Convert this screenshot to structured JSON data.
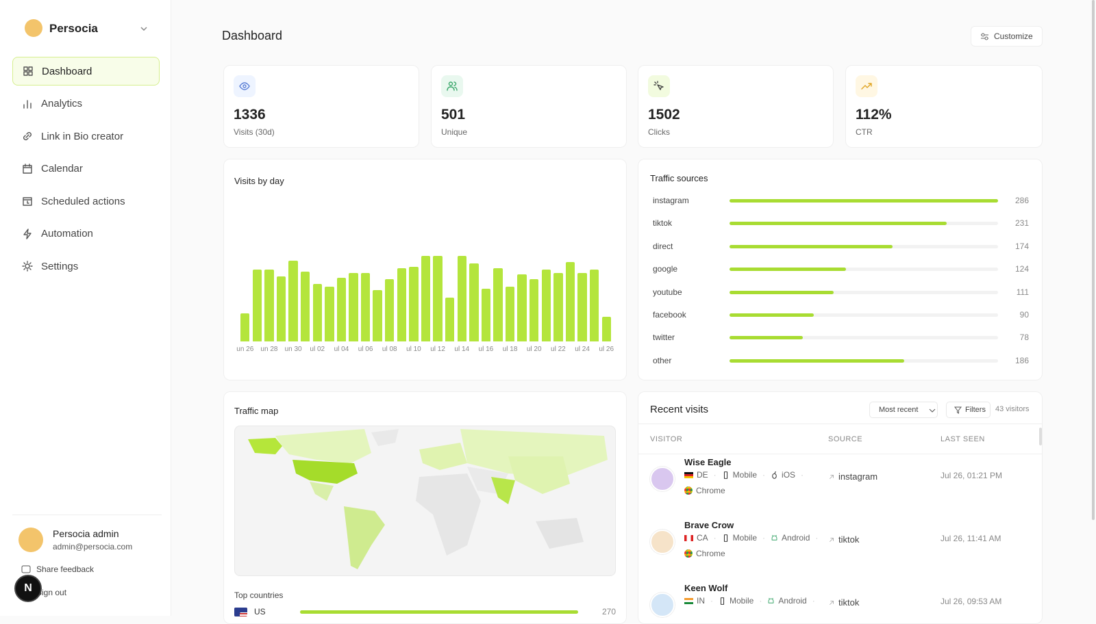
{
  "sidebar": {
    "brand": "Persocia",
    "nav": [
      "Dashboard",
      "Analytics",
      "Link in Bio creator",
      "Calendar",
      "Scheduled actions",
      "Automation",
      "Settings"
    ],
    "active": 0,
    "user": {
      "name": "Persocia admin",
      "email": "admin@persocia.com"
    },
    "links": [
      "Share feedback",
      "Sign out"
    ],
    "badge": "N"
  },
  "header": {
    "title": "Dashboard",
    "button": "Customize"
  },
  "stats": [
    {
      "value": 1336,
      "label": "Visits (30d)"
    },
    {
      "value": 501,
      "label": "Unique"
    },
    {
      "value": 1502,
      "label": "Clicks"
    },
    {
      "value": "112%",
      "label": "CTR"
    }
  ],
  "visits_by_day": {
    "title": "Visits by day",
    "color": "#b4e53c",
    "categories": [
      "un 26",
      null,
      "un 28",
      null,
      "un 30",
      null,
      "ul 02",
      null,
      "ul 04",
      null,
      "ul 06",
      null,
      "ul 08",
      null,
      "ul 10",
      null,
      "ul 12",
      null,
      "ul 14",
      null,
      "ul 16",
      null,
      "ul 18",
      null,
      "ul 20",
      null,
      "ul 22",
      null,
      "ul 24",
      null,
      "ul 26"
    ],
    "values": [
      18,
      46,
      46,
      42,
      52,
      45,
      37,
      35,
      41,
      44,
      44,
      33,
      40,
      47,
      48,
      55,
      55,
      28,
      55,
      50,
      34,
      47,
      35,
      43,
      40,
      46,
      44,
      51,
      44,
      46,
      16
    ]
  },
  "traffic_sources": {
    "title": "Traffic sources",
    "color": "#a8dc32",
    "rows": [
      {
        "name": "instagram",
        "value": 286
      },
      {
        "name": "tiktok",
        "value": 231
      },
      {
        "name": "direct",
        "value": 174
      },
      {
        "name": "google",
        "value": 124
      },
      {
        "name": "youtube",
        "value": 111
      },
      {
        "name": "facebook",
        "value": 90
      },
      {
        "name": "twitter",
        "value": 78
      },
      {
        "name": "other",
        "value": 186
      }
    ]
  },
  "traffic_map": {
    "title": "Traffic map",
    "top_title": "Top countries",
    "countries": [
      {
        "code": "US",
        "value": 270
      }
    ]
  },
  "recent_visits": {
    "title": "Recent visits",
    "sort": "Most recent",
    "filters": "Filters",
    "count": "43 visitors",
    "columns": [
      "VISITOR",
      "SOURCE",
      "LAST SEEN"
    ],
    "rows": [
      {
        "name": "Wise Eagle",
        "country": "DE",
        "device": "Mobile",
        "os": "iOS",
        "browser": "Chrome",
        "source": "instagram",
        "last_seen": "Jul 26, 01:21 PM"
      },
      {
        "name": "Brave Crow",
        "country": "CA",
        "device": "Mobile",
        "os": "Android",
        "browser": "Chrome",
        "source": "tiktok",
        "last_seen": "Jul 26, 11:41 AM"
      },
      {
        "name": "Keen Wolf",
        "country": "IN",
        "device": "Mobile",
        "os": "Android",
        "source": "tiktok",
        "last_seen": "Jul 26, 09:53 AM"
      }
    ]
  }
}
